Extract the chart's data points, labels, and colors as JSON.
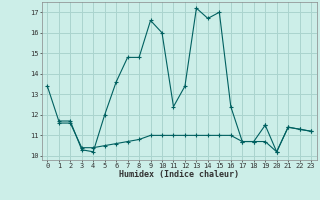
{
  "xlabel": "Humidex (Indice chaleur)",
  "bg_color": "#cceee8",
  "grid_color": "#aad4ce",
  "line_color": "#006060",
  "ylim": [
    9.8,
    17.5
  ],
  "xlim": [
    -0.5,
    23.5
  ],
  "yticks": [
    10,
    11,
    12,
    13,
    14,
    15,
    16,
    17
  ],
  "xticks": [
    0,
    1,
    2,
    3,
    4,
    5,
    6,
    7,
    8,
    9,
    10,
    11,
    12,
    13,
    14,
    15,
    16,
    17,
    18,
    19,
    20,
    21,
    22,
    23
  ],
  "series": [
    {
      "x": [
        0,
        1,
        2,
        3,
        4,
        5,
        6,
        7,
        8,
        9,
        10,
        11,
        12,
        13,
        14,
        15,
        16,
        17,
        18,
        19,
        20,
        21,
        22,
        23
      ],
      "y": [
        13.4,
        11.7,
        11.7,
        10.3,
        10.2,
        12.0,
        13.6,
        14.8,
        14.8,
        16.6,
        16.0,
        12.4,
        13.4,
        17.2,
        16.7,
        17.0,
        12.4,
        10.7,
        10.7,
        10.7,
        10.2,
        11.4,
        11.3,
        11.2
      ]
    },
    {
      "x": [
        1,
        2,
        3,
        4,
        5,
        6,
        7,
        8,
        9,
        10,
        11,
        12,
        13,
        14,
        15,
        16,
        17,
        18,
        19
      ],
      "y": [
        11.6,
        11.6,
        10.4,
        10.4,
        10.5,
        10.6,
        10.7,
        10.8,
        11.0,
        11.0,
        11.0,
        11.0,
        11.0,
        11.0,
        11.0,
        11.0,
        10.7,
        10.7,
        11.5
      ]
    },
    {
      "x": [
        19,
        20,
        21,
        22,
        23
      ],
      "y": [
        11.5,
        10.2,
        11.4,
        11.3,
        11.2
      ]
    }
  ]
}
